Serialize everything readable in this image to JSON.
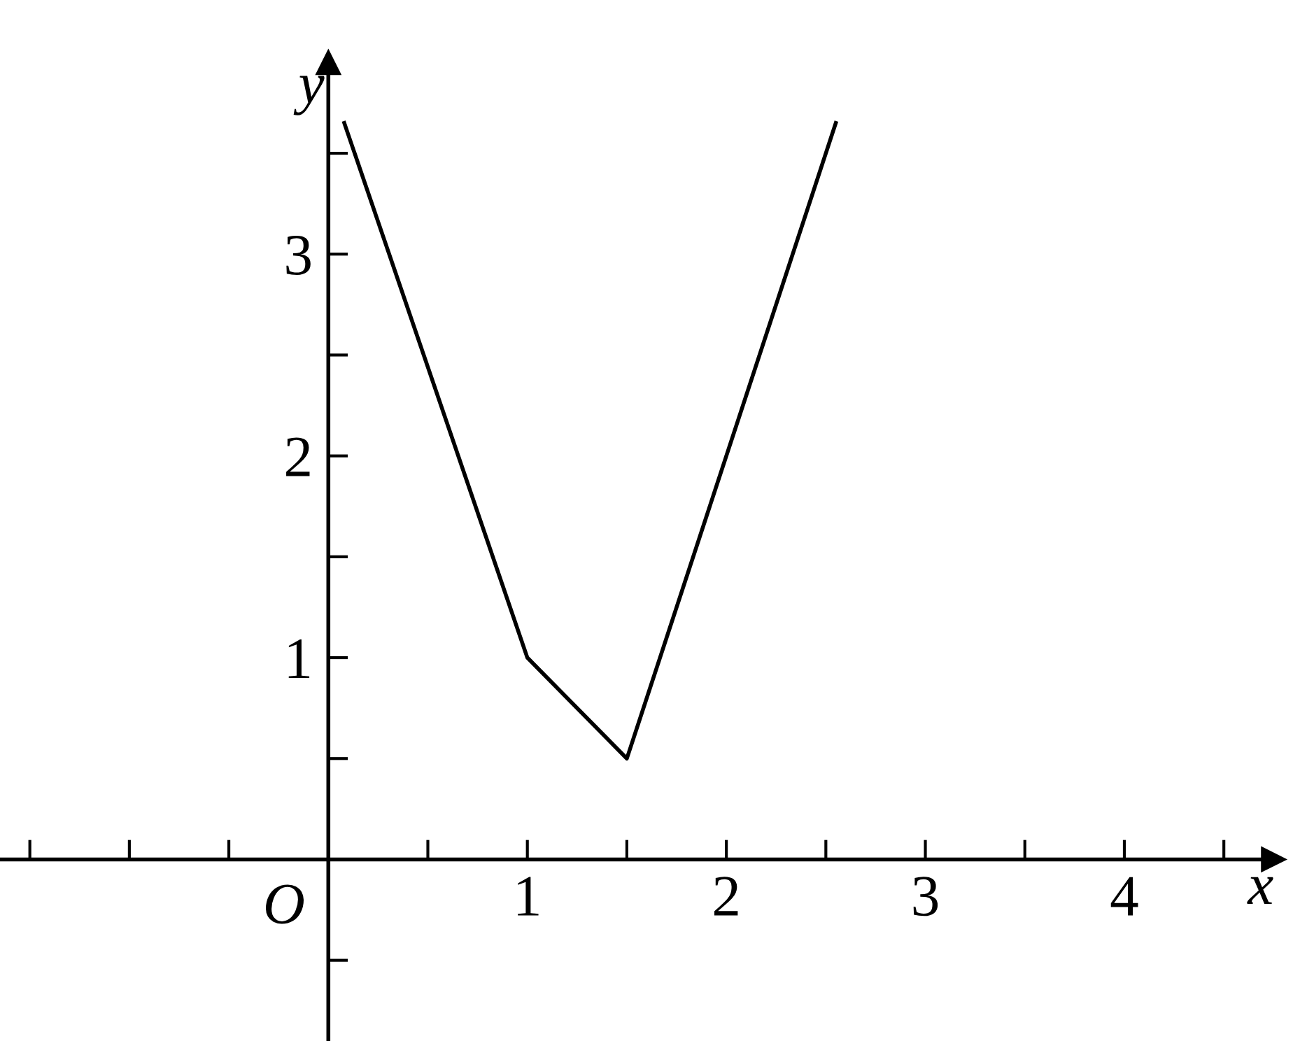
{
  "chart_data": {
    "type": "line",
    "xlabel": "x",
    "ylabel": "y",
    "x": [
      0.08,
      1,
      1.5,
      2.55
    ],
    "series": [
      {
        "color": "#000000",
        "values": [
          3.65,
          1,
          0.5,
          3.65
        ]
      }
    ],
    "xlim": [
      -1.65,
      4.75
    ],
    "ylim": [
      -0.9,
      3.95
    ],
    "xticks": [
      {
        "value": -1.5,
        "label": null
      },
      {
        "value": -1,
        "label": null
      },
      {
        "value": -0.5,
        "label": null
      },
      {
        "value": 0.5,
        "label": null
      },
      1,
      {
        "value": 1.5,
        "label": null
      },
      2,
      {
        "value": 2.5,
        "label": null
      },
      3,
      {
        "value": 3.5,
        "label": null
      },
      4,
      {
        "value": 4.5,
        "label": null
      }
    ],
    "yticks": [
      {
        "value": -0.5,
        "label": null
      },
      {
        "value": 0.5,
        "label": null
      },
      1,
      {
        "value": 1.5,
        "label": null
      },
      2,
      {
        "value": 2.5,
        "label": null
      },
      3,
      {
        "value": 3.5,
        "label": null
      }
    ],
    "annotations": [
      "O"
    ],
    "grid": false,
    "legend": false,
    "marker": "none",
    "line_style": "solid"
  }
}
